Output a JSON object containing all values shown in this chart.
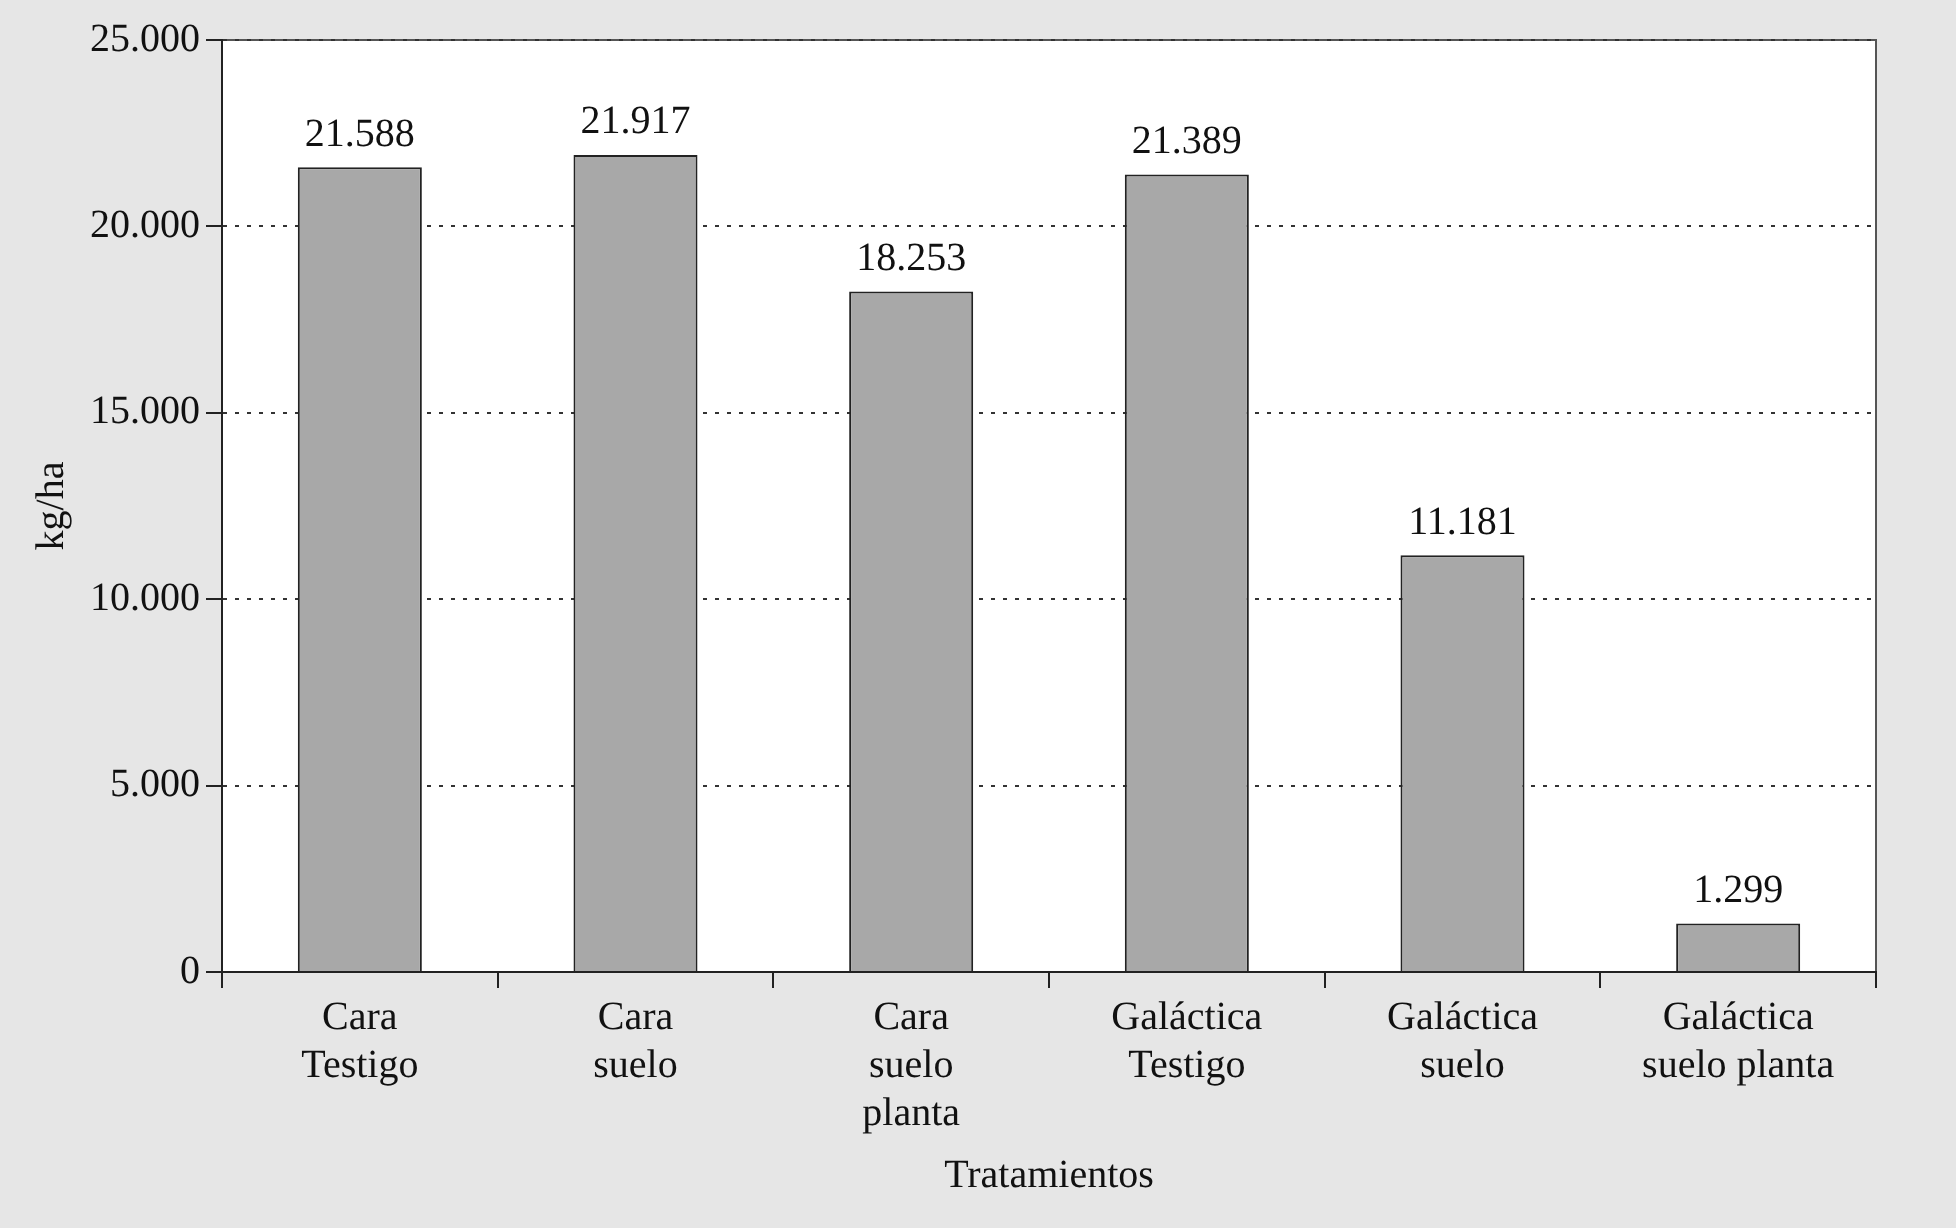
{
  "chart_data": {
    "type": "bar",
    "xlabel": "Tratamientos",
    "ylabel": "kg/ha",
    "categories": [
      "Cara\nTestigo",
      "Cara\nsuelo",
      "Cara\nsuelo\nplanta",
      "Galáctica\nTestigo",
      "Galáctica\nsuelo",
      "Galáctica\nsuelo planta"
    ],
    "values": [
      21588,
      21917,
      18253,
      21389,
      11181,
      1299
    ],
    "value_labels": [
      "21.588",
      "21.917",
      "18.253",
      "21.389",
      "11.181",
      "1.299"
    ],
    "color": "#a8a8a8",
    "ylim": [
      0,
      25000
    ],
    "yticks": [
      {
        "value": 0,
        "label": "0"
      },
      {
        "value": 5000,
        "label": "5.000"
      },
      {
        "value": 10000,
        "label": "10.000"
      },
      {
        "value": 15000,
        "label": "15.000"
      },
      {
        "value": 20000,
        "label": "20.000"
      },
      {
        "value": 25000,
        "label": "25.000"
      }
    ],
    "grid": "y",
    "line_style": "dotted"
  }
}
